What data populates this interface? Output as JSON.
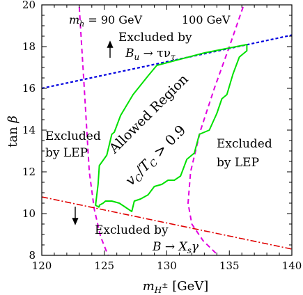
{
  "chart_data": {
    "type": "line",
    "xlim": [
      120,
      140
    ],
    "ylim": [
      8,
      20
    ],
    "xticks": [
      120,
      125,
      130,
      135,
      140
    ],
    "yticks": [
      8,
      10,
      12,
      14,
      16,
      18,
      20
    ],
    "x_tick_labels": [
      "120",
      "125",
      "130",
      "135",
      "140"
    ],
    "y_tick_labels": [
      "8",
      "10",
      "12",
      "14",
      "16",
      "18",
      "20"
    ],
    "xlabel": "m_{H±}  [GeV]",
    "ylabel": "tan β",
    "grid": false,
    "colors": {
      "allowed_region": "#00e000",
      "higgs_contours": "#e000e0",
      "bu_tau_nu_limit": "#0000e0",
      "b_xs_gamma_limit": "#e00000",
      "axes": "#000000"
    },
    "series": [
      {
        "style": "dashed",
        "x": [
          123.0,
          123.4,
          123.8,
          124.2,
          124.7,
          125.3
        ],
        "y": [
          19.9,
          16.0,
          12.0,
          10.2,
          8.9,
          8.0
        ]
      },
      {
        "style": "dashed",
        "x": [
          136.1,
          135.0,
          133.8,
          132.7,
          131.9,
          131.7,
          132.0,
          132.9,
          134.1
        ],
        "y": [
          19.9,
          18.0,
          16.0,
          14.0,
          12.0,
          10.5,
          9.5,
          8.7,
          8.0
        ]
      },
      {
        "style": "dashed",
        "x": [
          120.0,
          140.0
        ],
        "y": [
          16.0,
          18.55
        ]
      },
      {
        "style": "dash-dot",
        "x": [
          120.0,
          140.0
        ],
        "y": [
          10.8,
          8.3
        ]
      },
      {
        "style": "solid",
        "x": [
          124.6,
          124.6,
          124.9,
          125.1,
          125.6,
          126.2,
          126.7,
          127.2,
          127.4,
          127.9,
          128.5,
          129.0,
          129.6,
          130.1,
          130.6,
          131.1,
          131.6,
          132.2,
          132.6,
          133.4,
          134.0,
          134.4,
          134.8,
          135.3,
          135.8,
          136.4,
          136.4,
          133.0,
          129.2,
          128.5,
          127.3,
          126.3,
          125.8,
          125.6,
          125.2,
          124.6,
          124.5,
          124.3,
          124.6
        ],
        "y": [
          10.3,
          10.4,
          10.5,
          10.6,
          10.6,
          10.5,
          10.3,
          10.1,
          10.6,
          10.7,
          10.9,
          11.3,
          11.4,
          11.6,
          11.6,
          11.8,
          12.6,
          12.9,
          13.8,
          14.0,
          14.8,
          15.5,
          15.7,
          16.7,
          17.5,
          17.8,
          18.1,
          17.7,
          17.1,
          16.6,
          15.7,
          14.7,
          13.9,
          13.8,
          12.8,
          12.3,
          11.4,
          10.4,
          10.3
        ]
      }
    ],
    "annotations": {
      "mh_90": {
        "var": "m",
        "sub": "h",
        "rest": " = 90 GeV"
      },
      "mh_100": "100 GeV",
      "excl_bu_1": "Excluded by",
      "excl_bu_2": {
        "b": "B",
        "bsub": "u",
        "arrow": " → τν",
        "tsub": "τ"
      },
      "excl_lep_left_1": "Excluded",
      "excl_lep_left_2": "by LEP",
      "excl_lep_right_1": "Excluded",
      "excl_lep_right_2": "by LEP",
      "allowed_region": "Allowed Region",
      "vc_tc": {
        "v": "v",
        "vsub": "C",
        "slash": "/",
        "t": "T",
        "tsub": "C",
        "rest": " > 0.9"
      },
      "excl_bxs_1": "Excluded by",
      "excl_bxs_2": {
        "b": "B",
        "arrow": " → ",
        "x": "X",
        "xsub": "s",
        "g": "γ"
      }
    }
  }
}
